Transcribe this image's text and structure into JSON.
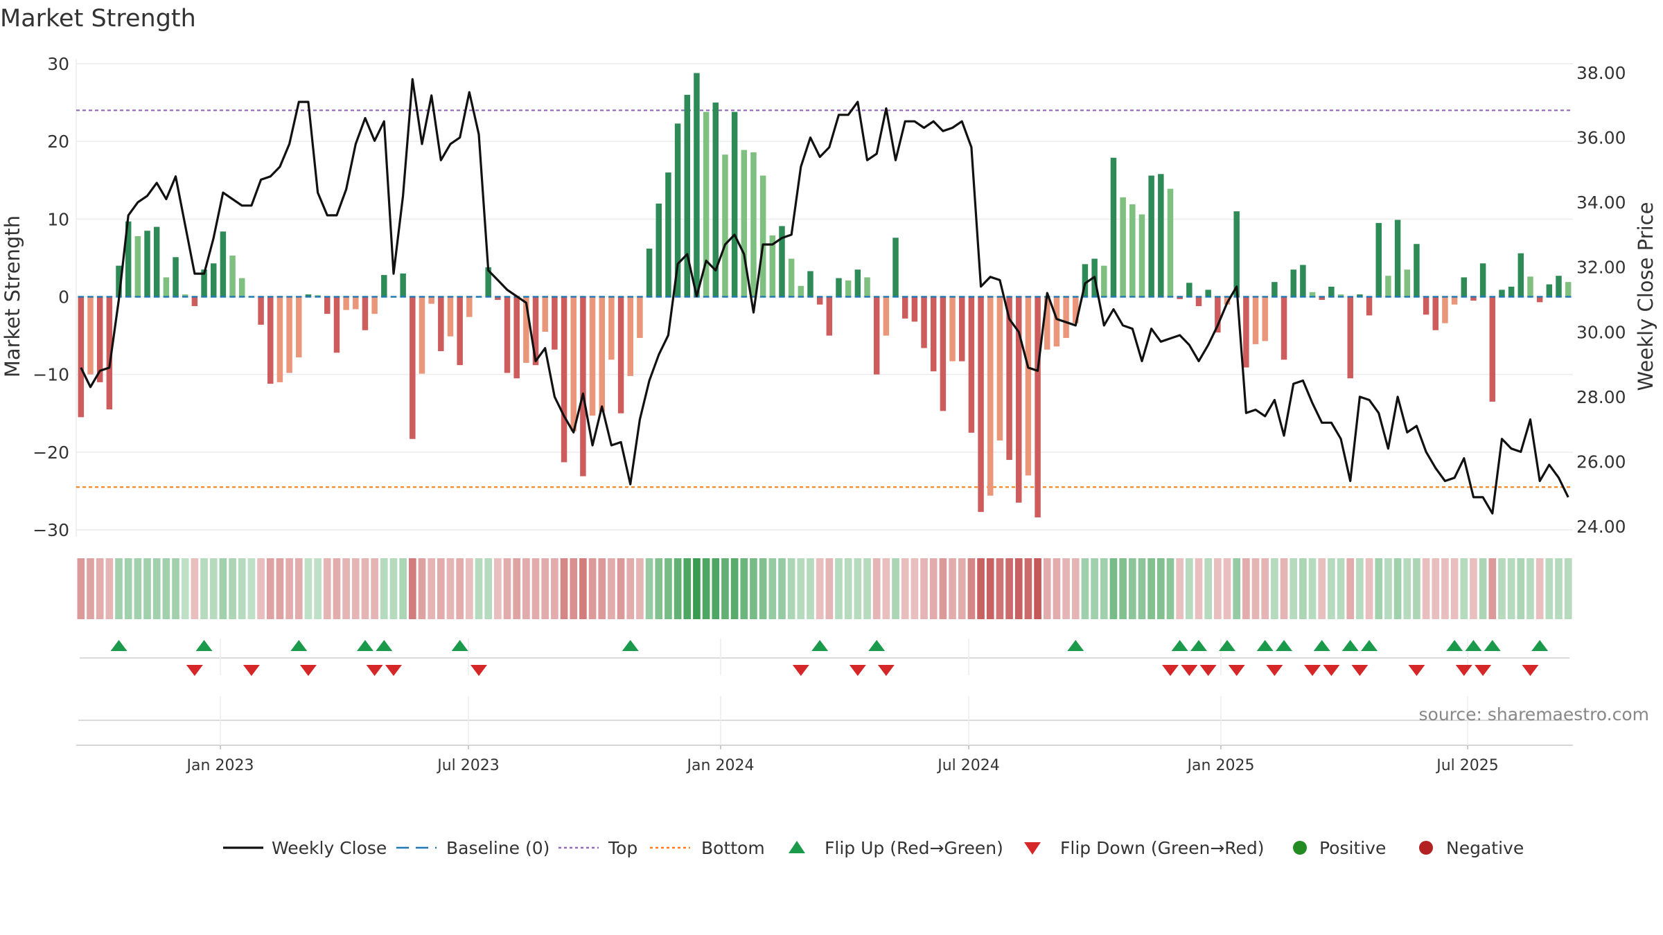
{
  "chart_data": {
    "type": "bar+line",
    "title": "Market Strength",
    "ylabel_left": "Market Strength",
    "ylabel_right": "Weekly Close Price",
    "ylim_left": [
      -30,
      30
    ],
    "ylim_right": [
      24,
      38
    ],
    "left_ticks": [
      "30",
      "20",
      "10",
      "0",
      "−10",
      "−20",
      "−30"
    ],
    "right_ticks": [
      "38.00",
      "36.00",
      "34.00",
      "32.00",
      "30.00",
      "28.00",
      "26.00",
      "24.00"
    ],
    "x_ticks": [
      "Jan 2023",
      "Jul 2023",
      "Jan 2024",
      "Jul 2024",
      "Jan 2025",
      "Jul 2025"
    ],
    "top_line": 24,
    "bottom_line": -24.5,
    "source": "source: sharemaestro.com",
    "colors": {
      "pos_strong": "#2e8b57",
      "pos_weak": "#7fbf7f",
      "neg_strong": "#cd5c5c",
      "neg_weak": "#e9967a",
      "baseline": "#1f77b4",
      "top": "#9467bd",
      "bottom": "#ff7f0e",
      "close": "#111111",
      "flip_up": "#1a9a4a",
      "flip_down": "#d62728",
      "positive_dot": "#228b22",
      "negative_dot": "#b22222"
    },
    "strength": [
      -15.5,
      -10,
      -11,
      -14.5,
      4,
      9.7,
      7.8,
      8.5,
      9,
      2.5,
      5.1,
      0.3,
      -1.2,
      3.5,
      4.3,
      8.4,
      5.3,
      2.4,
      0,
      -3.6,
      -11.2,
      -11,
      -9.8,
      -7.8,
      0.3,
      0.2,
      -2.2,
      -7.2,
      -1.7,
      -1.6,
      -4.3,
      -2.2,
      2.8,
      0,
      3,
      -18.3,
      -9.9,
      -0.9,
      -7,
      -5.1,
      -8.8,
      -2.6,
      0,
      3.8,
      -0.4,
      -9.8,
      -10.5,
      -8.5,
      -8.8,
      -4.5,
      -6.8,
      -21.3,
      -17.3,
      -23.1,
      -15.3,
      -14.8,
      -8.1,
      -15,
      -10.2,
      -5.3,
      6.2,
      12,
      16,
      22.3,
      26,
      28.8,
      23.8,
      25,
      18.3,
      23.8,
      18.9,
      18.6,
      15.6,
      7.9,
      9.1,
      4.9,
      1.4,
      3.3,
      -1,
      -5,
      2.4,
      2.1,
      3.5,
      2.5,
      -10,
      -5,
      7.6,
      -2.8,
      -3.2,
      -6.6,
      -9.6,
      -14.7,
      -8.3,
      -8.3,
      -17.5,
      -27.7,
      -25.6,
      -18.5,
      -21,
      -26.5,
      -23,
      -28.4,
      -6.8,
      -6.4,
      -5.3,
      -3.4,
      4.2,
      4.9,
      4,
      17.9,
      12.8,
      11.9,
      10.6,
      15.6,
      15.8,
      13.9,
      -0.3,
      1.8,
      -1.2,
      0.9,
      -4.6,
      -1,
      11,
      -9.1,
      -6.1,
      -5.7,
      1.9,
      -8.1,
      3.5,
      4.1,
      0.6,
      -0.4,
      1.3,
      0.3,
      -10.5,
      0.3,
      -2.4,
      9.5,
      2.7,
      9.9,
      3.5,
      6.8,
      -2.3,
      -4.3,
      -3.4,
      -1,
      2.5,
      -0.5,
      4.3,
      -13.5,
      0.9,
      1.3,
      5.6,
      2.6,
      -0.7,
      1.6,
      2.7,
      1.9
    ],
    "close": [
      28.9,
      28.3,
      28.8,
      28.9,
      31,
      33.6,
      34,
      34.2,
      34.6,
      34.1,
      34.8,
      33.3,
      31.8,
      31.8,
      32.9,
      34.3,
      34.1,
      33.9,
      33.9,
      34.7,
      34.8,
      35.1,
      35.8,
      37.1,
      37.1,
      34.3,
      33.6,
      33.6,
      34.4,
      35.8,
      36.6,
      35.9,
      36.5,
      31.8,
      34.2,
      37.8,
      35.8,
      37.3,
      35.3,
      35.8,
      36,
      37.4,
      36.1,
      31.9,
      31.6,
      31.3,
      31.1,
      30.9,
      29.1,
      29.5,
      28,
      27.4,
      26.9,
      28.1,
      26.5,
      27.7,
      26.5,
      26.6,
      25.3,
      27.3,
      28.5,
      29.3,
      29.9,
      32.1,
      32.4,
      31.1,
      32.2,
      31.9,
      32.7,
      33,
      32.4,
      30.6,
      32.7,
      32.7,
      32.9,
      33,
      35.1,
      36,
      35.4,
      35.7,
      36.7,
      36.7,
      37.1,
      35.3,
      35.5,
      36.9,
      35.3,
      36.5,
      36.5,
      36.3,
      36.5,
      36.2,
      36.3,
      36.5,
      35.7,
      31.4,
      31.7,
      31.6,
      30.4,
      30,
      28.9,
      28.8,
      31.2,
      30.4,
      30.3,
      30.2,
      31.5,
      31.7,
      30.2,
      30.7,
      30.2,
      30.1,
      29.1,
      30.1,
      29.7,
      29.8,
      29.9,
      29.6,
      29.1,
      29.6,
      30.2,
      30.9,
      31.4,
      27.5,
      27.6,
      27.4,
      27.9,
      26.8,
      28.4,
      28.5,
      27.8,
      27.2,
      27.2,
      26.7,
      25.4,
      28,
      27.9,
      27.5,
      26.4,
      28,
      26.9,
      27.1,
      26.3,
      25.8,
      25.4,
      25.5,
      26.1,
      24.9,
      24.9,
      24.4,
      26.7,
      26.4,
      26.3,
      27.3,
      25.4,
      25.9,
      25.5,
      24.9
    ],
    "band_alphas": [
      0.55,
      0.5,
      0.45,
      0.4,
      0.45,
      0.45,
      0.45,
      0.45,
      0.45,
      0.45,
      0.45,
      0.3,
      0.35,
      0.35,
      0.35,
      0.45,
      0.4,
      0.35,
      0.3,
      0.35,
      0.5,
      0.5,
      0.45,
      0.45,
      0.3,
      0.3,
      0.4,
      0.45,
      0.4,
      0.4,
      0.4,
      0.4,
      0.35,
      0.35,
      0.4,
      0.7,
      0.5,
      0.4,
      0.45,
      0.4,
      0.45,
      0.35,
      0.35,
      0.35,
      0.35,
      0.45,
      0.5,
      0.45,
      0.45,
      0.45,
      0.45,
      0.65,
      0.6,
      0.7,
      0.55,
      0.55,
      0.45,
      0.55,
      0.45,
      0.4,
      0.5,
      0.6,
      0.65,
      0.75,
      0.85,
      0.95,
      0.85,
      0.85,
      0.75,
      0.8,
      0.7,
      0.65,
      0.6,
      0.5,
      0.5,
      0.4,
      0.35,
      0.35,
      0.35,
      0.4,
      0.35,
      0.35,
      0.35,
      0.35,
      0.4,
      0.35,
      0.4,
      0.35,
      0.35,
      0.4,
      0.45,
      0.55,
      0.45,
      0.45,
      0.65,
      0.85,
      0.85,
      0.75,
      0.8,
      0.85,
      0.8,
      0.9,
      0.45,
      0.45,
      0.4,
      0.4,
      0.45,
      0.45,
      0.45,
      0.65,
      0.6,
      0.55,
      0.55,
      0.6,
      0.6,
      0.55,
      0.35,
      0.35,
      0.35,
      0.35,
      0.35,
      0.35,
      0.5,
      0.45,
      0.4,
      0.4,
      0.35,
      0.4,
      0.35,
      0.4,
      0.35,
      0.35,
      0.35,
      0.35,
      0.45,
      0.35,
      0.35,
      0.45,
      0.35,
      0.45,
      0.35,
      0.4,
      0.35,
      0.35,
      0.35,
      0.35,
      0.35,
      0.35,
      0.4,
      0.55,
      0.35,
      0.35,
      0.4,
      0.35,
      0.35,
      0.35,
      0.35,
      0.35
    ],
    "flip_up": [
      4,
      13,
      23,
      30,
      32,
      40,
      58,
      78,
      84,
      105,
      116,
      118,
      121,
      125,
      127,
      131,
      134,
      136,
      145,
      147,
      149,
      154
    ],
    "flip_down": [
      12,
      18,
      24,
      31,
      33,
      42,
      76,
      82,
      85,
      115,
      117,
      119,
      122,
      126,
      130,
      132,
      135,
      141,
      146,
      148,
      153
    ],
    "legend": [
      {
        "key": "line",
        "label": "Weekly Close"
      },
      {
        "key": "baseline",
        "label": "Baseline (0)"
      },
      {
        "key": "top",
        "label": "Top"
      },
      {
        "key": "bottom",
        "label": "Bottom"
      },
      {
        "key": "flipup",
        "label": "Flip Up (Red→Green)"
      },
      {
        "key": "flipdown",
        "label": "Flip Down (Green→Red)"
      },
      {
        "key": "positive",
        "label": "Positive"
      },
      {
        "key": "negative",
        "label": "Negative"
      }
    ]
  }
}
